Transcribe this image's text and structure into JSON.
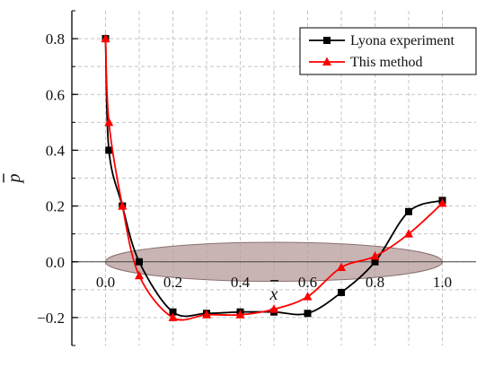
{
  "chart_data": {
    "type": "line",
    "title": "",
    "xlabel": "x",
    "ylabel": "p",
    "xlim": [
      -0.1,
      1.1
    ],
    "ylim": [
      -0.3,
      0.9
    ],
    "x_ticks": [
      0.0,
      0.2,
      0.4,
      0.6,
      0.8,
      1.0
    ],
    "x_tick_labels": [
      "0.0",
      "0.2",
      "0.4",
      "0.6",
      "0.8",
      "1.0"
    ],
    "y_ticks": [
      -0.2,
      0.0,
      0.2,
      0.4,
      0.6,
      0.8
    ],
    "y_tick_labels": [
      "−0.2",
      "0.0",
      "0.2",
      "0.4",
      "0.6",
      "0.8"
    ],
    "grid": true,
    "legend_position": "top-right",
    "overlay": {
      "shape": "ellipse",
      "center_x": 0.5,
      "center_y": 0.0,
      "half_width": 0.5,
      "half_height": 0.07,
      "color": "#b79b9b"
    },
    "series": [
      {
        "name": "Lyona experiment",
        "color": "#000000",
        "marker": "square",
        "x": [
          0.0,
          0.01,
          0.05,
          0.1,
          0.2,
          0.3,
          0.4,
          0.5,
          0.6,
          0.7,
          0.8,
          0.9,
          1.0
        ],
        "y": [
          0.8,
          0.4,
          0.2,
          0.0,
          -0.18,
          -0.185,
          -0.18,
          -0.18,
          -0.185,
          -0.11,
          0.0,
          0.18,
          0.22
        ]
      },
      {
        "name": "This method",
        "color": "#ff0000",
        "marker": "triangle",
        "x": [
          0.0,
          0.01,
          0.05,
          0.1,
          0.2,
          0.3,
          0.4,
          0.5,
          0.6,
          0.7,
          0.8,
          0.9,
          1.0
        ],
        "y": [
          0.8,
          0.5,
          0.2,
          -0.05,
          -0.2,
          -0.19,
          -0.19,
          -0.17,
          -0.125,
          -0.02,
          0.02,
          0.1,
          0.21
        ]
      }
    ]
  }
}
